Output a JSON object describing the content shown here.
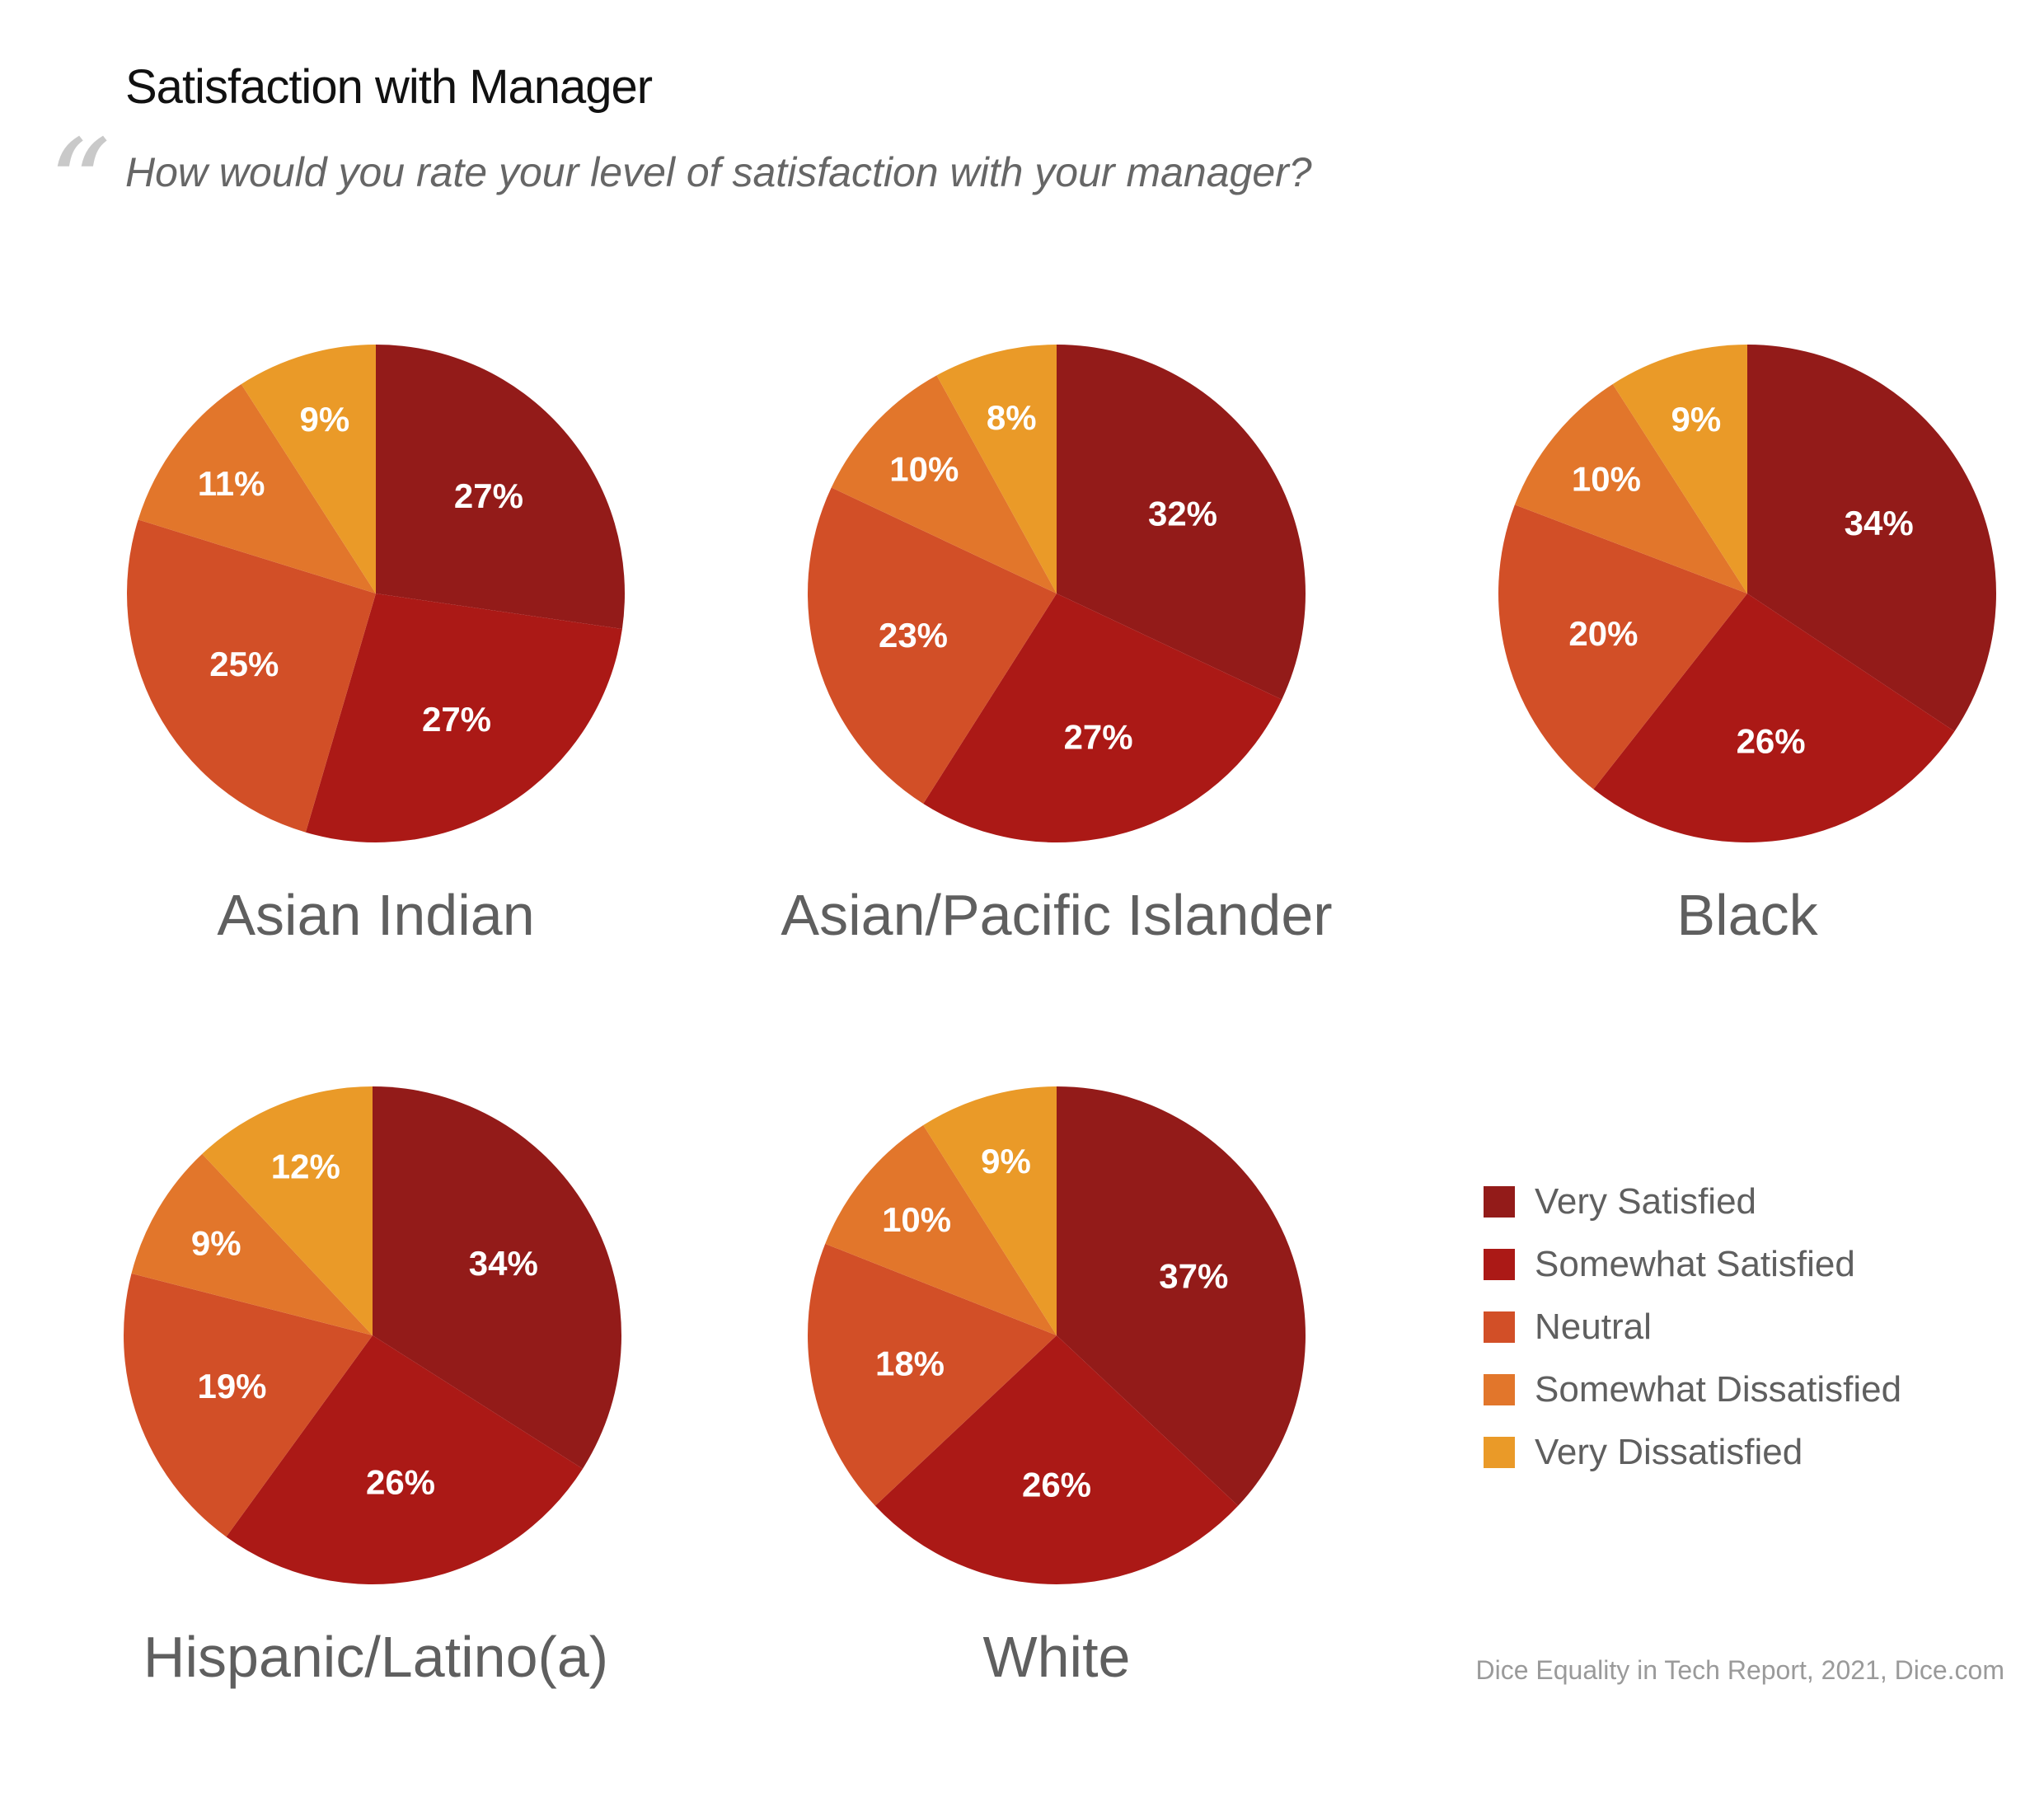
{
  "header": {
    "title": "Satisfaction with Manager",
    "quote_mark": "“",
    "subtitle": "How would you rate your level of satisfaction with your manager?"
  },
  "chart_data": {
    "type": "pie",
    "categories": [
      "Very Satisfied",
      "Somewhat Satisfied",
      "Neutral",
      "Somewhat Dissatisfied",
      "Very Dissatisfied"
    ],
    "colors": [
      "#931b19",
      "#ab1916",
      "#d24f27",
      "#e2762b",
      "#ea9a28"
    ],
    "legend_position": "right",
    "groups": [
      {
        "name": "Asian Indian",
        "values": [
          27,
          27,
          25,
          11,
          9
        ],
        "labels": [
          "27%",
          "27%",
          "25%",
          "11%",
          "9%"
        ]
      },
      {
        "name": "Asian/Pacific Islander",
        "values": [
          32,
          27,
          23,
          10,
          8
        ],
        "labels": [
          "32%",
          "27%",
          "23%",
          "10%",
          "8%"
        ]
      },
      {
        "name": "Black",
        "values": [
          34,
          26,
          20,
          10,
          9
        ],
        "labels": [
          "34%",
          "26%",
          "20%",
          "10%",
          "9%"
        ]
      },
      {
        "name": "Hispanic/Latino(a)",
        "values": [
          34,
          26,
          19,
          9,
          12
        ],
        "labels": [
          "34%",
          "26%",
          "19%",
          "9%",
          "12%"
        ]
      },
      {
        "name": "White",
        "values": [
          37,
          26,
          18,
          10,
          9
        ],
        "labels": [
          "37%",
          "26%",
          "18%",
          "10%",
          "9%"
        ]
      }
    ]
  },
  "legend": {
    "items": [
      "Very Satisfied",
      "Somewhat Satisfied",
      "Neutral",
      "Somewhat Dissatisfied",
      "Very Dissatisfied"
    ]
  },
  "source": "Dice Equality in Tech Report, 2021, Dice.com"
}
